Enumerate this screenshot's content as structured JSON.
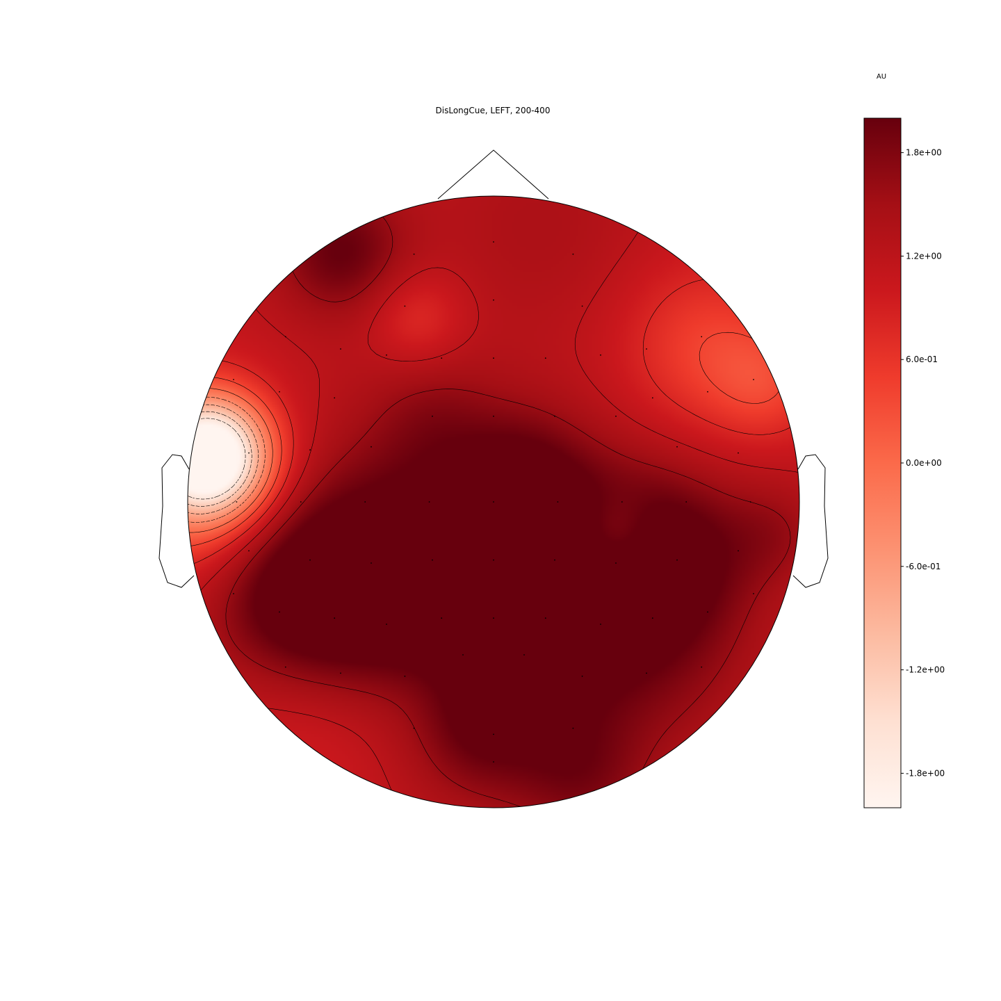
{
  "chart_data": {
    "type": "heatmap",
    "title": "DisLongCue, LEFT, 200-400",
    "colorbar": {
      "unit": "AU",
      "range": [
        -2.0,
        2.0
      ],
      "tick_values": [
        1.8,
        1.2,
        0.6,
        0.0,
        -0.6,
        -1.2,
        -1.8
      ],
      "tick_labels": [
        "1.8e+00",
        "1.2e+00",
        "6.0e-01",
        "0.0e+00",
        "-6.0e-01",
        "-1.2e+00",
        "-1.8e+00"
      ],
      "colormap": "Reds",
      "stops": [
        "#fff5f0",
        "#fee0d2",
        "#fcbba1",
        "#fc9272",
        "#fb6a4a",
        "#ef3b2c",
        "#cb181d",
        "#a50f15",
        "#67000d"
      ]
    },
    "field": {
      "base_value": 1.15,
      "sources": [
        {
          "x": -0.93,
          "y": 0.15,
          "value": -3.3,
          "spread": 0.13
        },
        {
          "x": -0.98,
          "y": 0.05,
          "value": -1.2,
          "spread": 0.22
        },
        {
          "x": 0.0,
          "y": -0.35,
          "value": 0.95,
          "spread": 0.35
        },
        {
          "x": -0.45,
          "y": -0.28,
          "value": 0.95,
          "spread": 0.3
        },
        {
          "x": -0.65,
          "y": -0.3,
          "value": 0.7,
          "spread": 0.2
        },
        {
          "x": 0.55,
          "y": -0.18,
          "value": 0.95,
          "spread": 0.2
        },
        {
          "x": 0.2,
          "y": -0.25,
          "value": 0.6,
          "spread": 0.25
        },
        {
          "x": 0.1,
          "y": 0.1,
          "value": 0.5,
          "spread": 0.15
        },
        {
          "x": 0.4,
          "y": -0.12,
          "value": -0.75,
          "spread": 0.1
        },
        {
          "x": -0.5,
          "y": 0.82,
          "value": 0.85,
          "spread": 0.15
        },
        {
          "x": -0.25,
          "y": 0.6,
          "value": -0.5,
          "spread": 0.11
        },
        {
          "x": 0.7,
          "y": 0.5,
          "value": -0.7,
          "spread": 0.2
        },
        {
          "x": 0.9,
          "y": 0.38,
          "value": -0.5,
          "spread": 0.13
        },
        {
          "x": -0.55,
          "y": -0.68,
          "value": -0.5,
          "spread": 0.25
        },
        {
          "x": -0.2,
          "y": -0.6,
          "value": -0.25,
          "spread": 0.15
        },
        {
          "x": 0.28,
          "y": -0.9,
          "value": 0.5,
          "spread": 0.15
        },
        {
          "x": 0.92,
          "y": -0.1,
          "value": 0.35,
          "spread": 0.12
        },
        {
          "x": 0.15,
          "y": 0.9,
          "value": 0.25,
          "spread": 0.25
        },
        {
          "x": -0.05,
          "y": -0.75,
          "value": 0.5,
          "spread": 0.15
        },
        {
          "x": 0.55,
          "y": -0.55,
          "value": 0.3,
          "spread": 0.25
        },
        {
          "x": -0.2,
          "y": 0.28,
          "value": 0.35,
          "spread": 0.15
        }
      ],
      "contour_levels": [
        -1.6,
        -1.2,
        -0.8,
        -0.4,
        0.0,
        0.4,
        0.8,
        1.2,
        1.6
      ],
      "sensors": [
        [
          0.0,
          0.85
        ],
        [
          -0.26,
          0.81
        ],
        [
          0.26,
          0.81
        ],
        [
          -0.29,
          0.64
        ],
        [
          0.0,
          0.66
        ],
        [
          0.29,
          0.64
        ],
        [
          -0.68,
          0.54
        ],
        [
          -0.5,
          0.5
        ],
        [
          0.5,
          0.5
        ],
        [
          0.68,
          0.54
        ],
        [
          -0.7,
          0.36
        ],
        [
          -0.52,
          0.34
        ],
        [
          -0.35,
          0.48
        ],
        [
          -0.17,
          0.47
        ],
        [
          0.0,
          0.47
        ],
        [
          0.17,
          0.47
        ],
        [
          0.35,
          0.48
        ],
        [
          0.52,
          0.34
        ],
        [
          0.7,
          0.36
        ],
        [
          -0.8,
          0.16
        ],
        [
          -0.6,
          0.17
        ],
        [
          -0.4,
          0.18
        ],
        [
          -0.2,
          0.28
        ],
        [
          0.0,
          0.28
        ],
        [
          0.2,
          0.28
        ],
        [
          0.4,
          0.28
        ],
        [
          0.6,
          0.18
        ],
        [
          0.8,
          0.16
        ],
        [
          -0.84,
          0.0
        ],
        [
          -0.63,
          0.0
        ],
        [
          -0.42,
          0.0
        ],
        [
          -0.21,
          0.0
        ],
        [
          0.0,
          0.0
        ],
        [
          0.21,
          0.0
        ],
        [
          0.42,
          0.0
        ],
        [
          0.63,
          0.0
        ],
        [
          0.84,
          0.0
        ],
        [
          -0.8,
          -0.16
        ],
        [
          -0.6,
          -0.19
        ],
        [
          -0.4,
          -0.2
        ],
        [
          -0.2,
          -0.19
        ],
        [
          0.0,
          -0.19
        ],
        [
          0.2,
          -0.19
        ],
        [
          0.4,
          -0.2
        ],
        [
          0.6,
          -0.19
        ],
        [
          0.8,
          -0.16
        ],
        [
          -0.7,
          -0.36
        ],
        [
          -0.52,
          -0.38
        ],
        [
          -0.35,
          -0.4
        ],
        [
          -0.17,
          -0.38
        ],
        [
          0.0,
          -0.38
        ],
        [
          0.17,
          -0.38
        ],
        [
          0.35,
          -0.4
        ],
        [
          0.52,
          -0.38
        ],
        [
          0.7,
          -0.36
        ],
        [
          -0.68,
          -0.54
        ],
        [
          -0.5,
          -0.56
        ],
        [
          -0.29,
          -0.57
        ],
        [
          -0.1,
          -0.5
        ],
        [
          0.1,
          -0.5
        ],
        [
          0.29,
          -0.57
        ],
        [
          0.5,
          -0.56
        ],
        [
          0.68,
          -0.54
        ],
        [
          -0.26,
          -0.74
        ],
        [
          0.0,
          -0.76
        ],
        [
          0.26,
          -0.74
        ],
        [
          0.0,
          -0.85
        ],
        [
          -0.85,
          0.4
        ],
        [
          0.85,
          0.4
        ],
        [
          -0.85,
          -0.3
        ],
        [
          0.85,
          -0.3
        ]
      ]
    }
  }
}
